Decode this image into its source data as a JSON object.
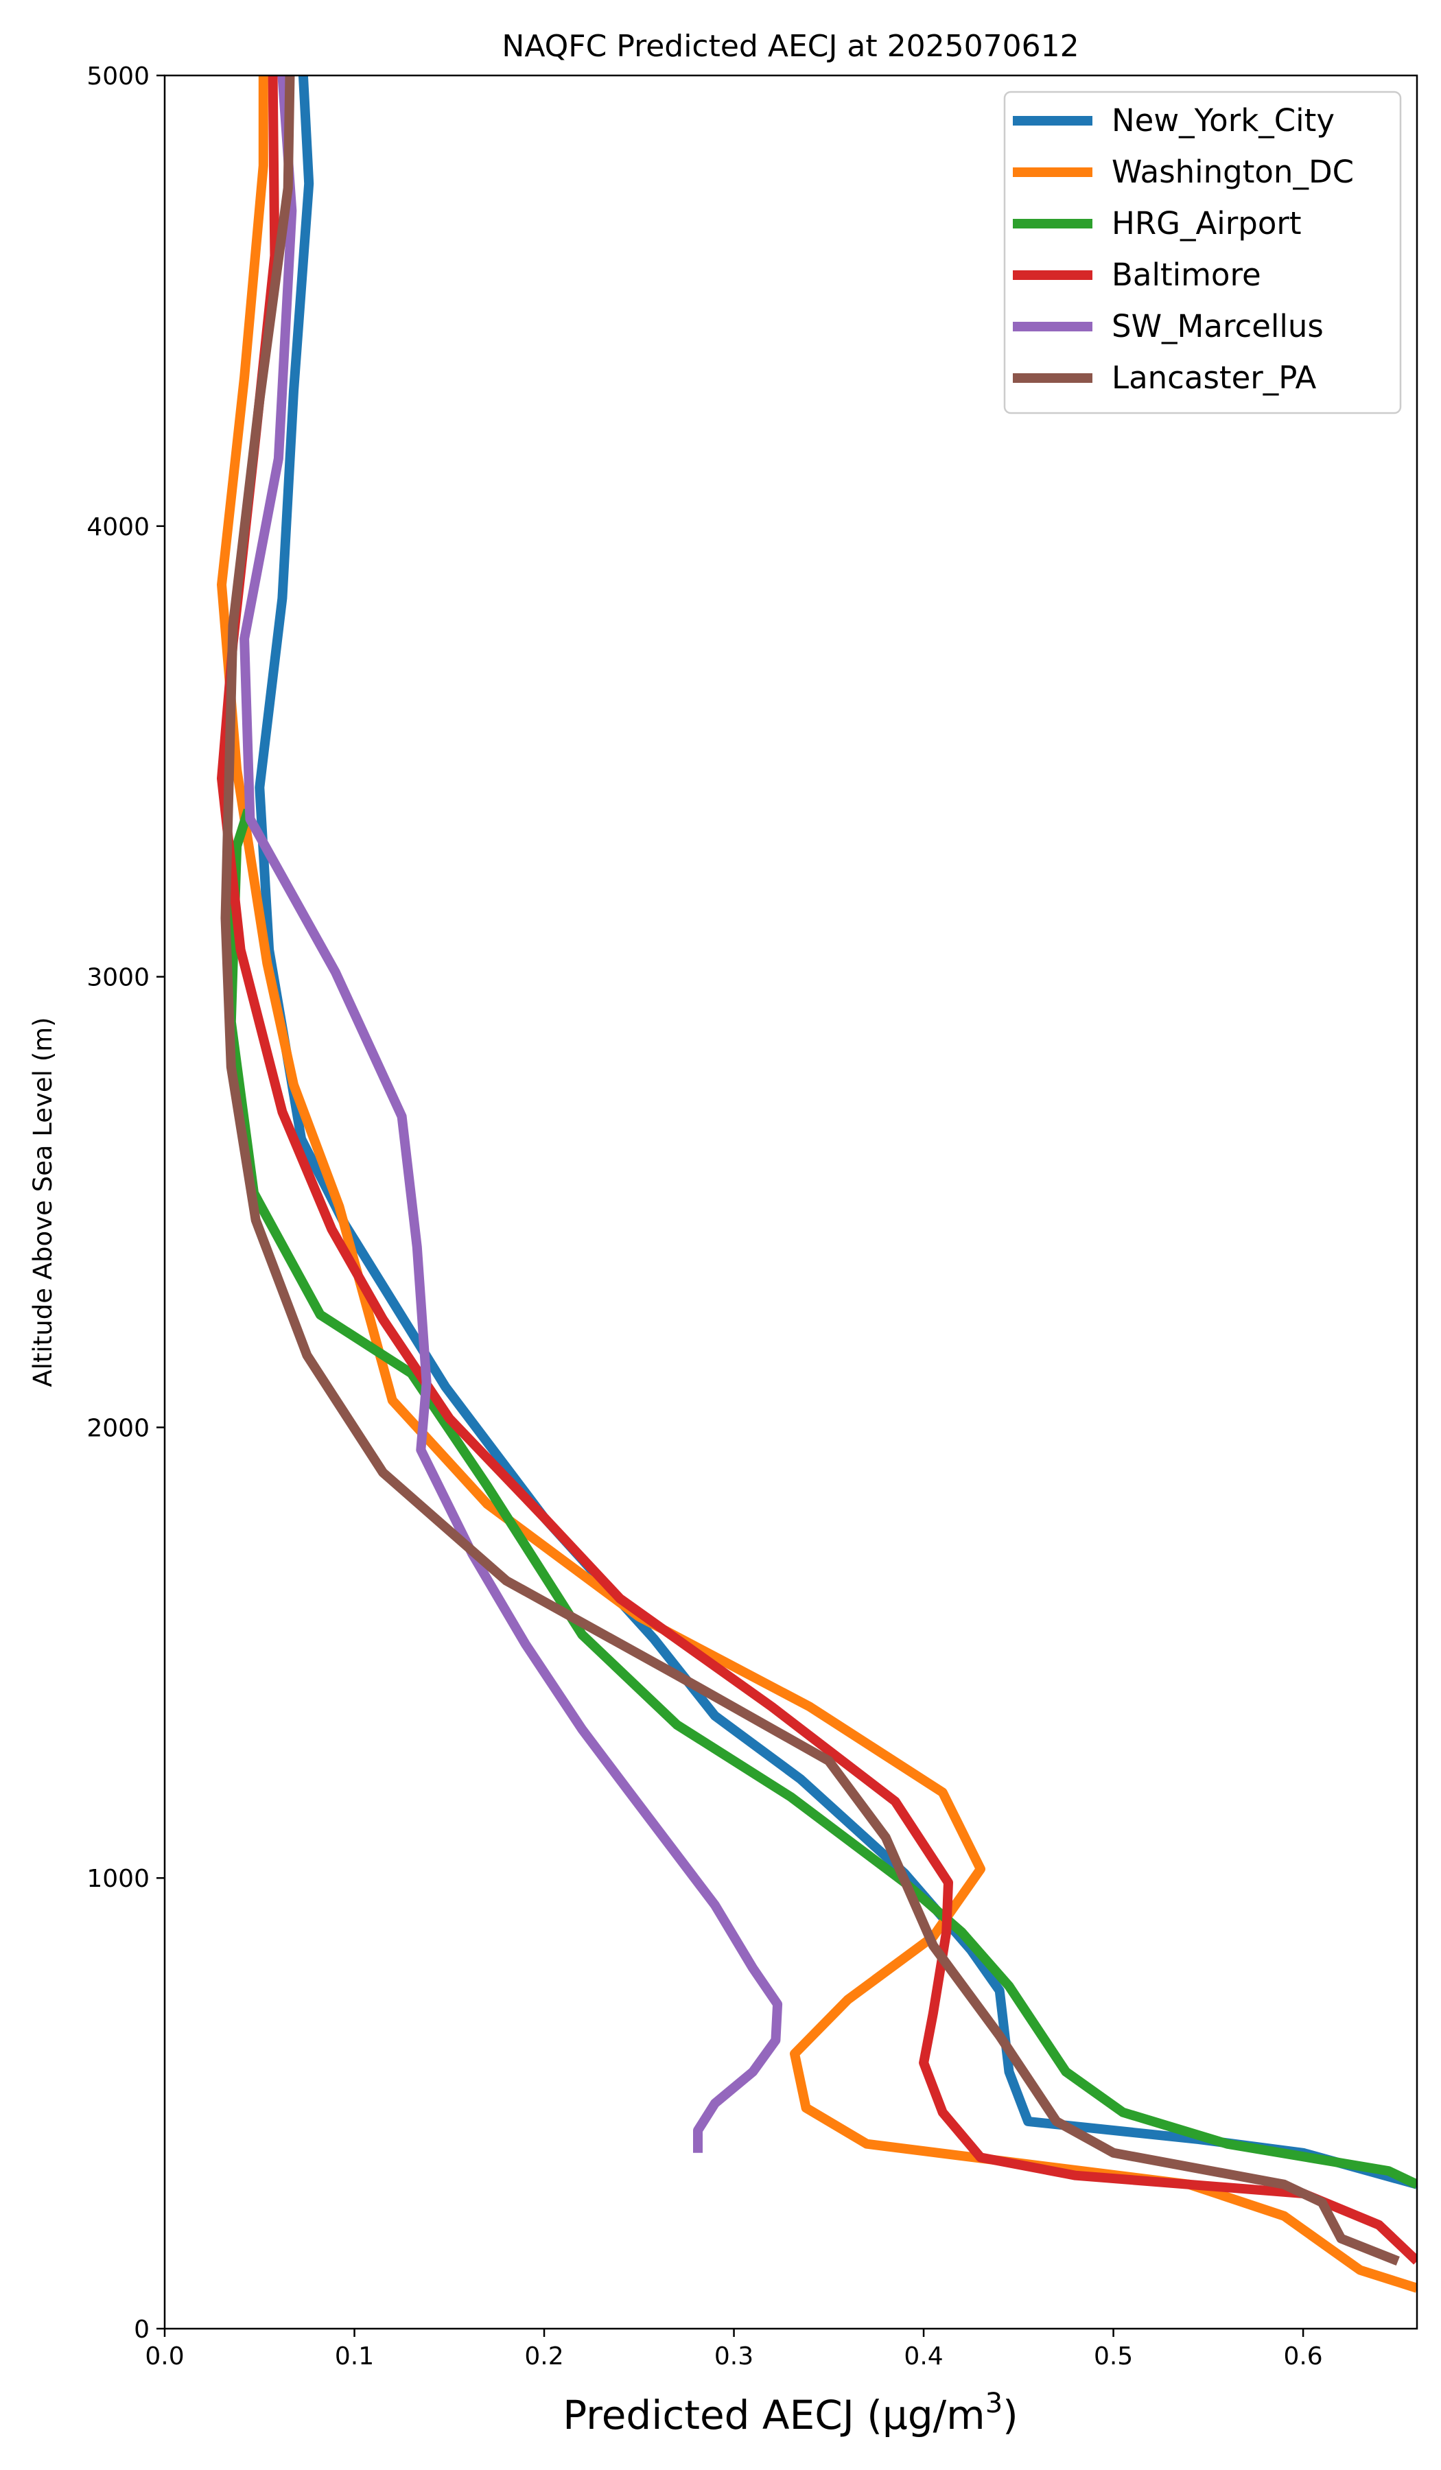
{
  "chart_data": {
    "type": "line",
    "title": "NAQFC Predicted AECJ at 2025070612",
    "xlabel": "Predicted AECJ (μg/m³)",
    "ylabel": "Altitude Above Sea Level (m)",
    "xlim": [
      0.0,
      0.66
    ],
    "ylim": [
      0,
      5000
    ],
    "xticks": [
      0.0,
      0.1,
      0.2,
      0.3,
      0.4,
      0.5,
      0.6
    ],
    "xtick_labels": [
      "0.0",
      "0.1",
      "0.2",
      "0.3",
      "0.4",
      "0.5",
      "0.6"
    ],
    "yticks": [
      0,
      1000,
      2000,
      3000,
      4000,
      5000
    ],
    "ytick_labels": [
      "0",
      "1000",
      "2000",
      "3000",
      "4000",
      "5000"
    ],
    "grid": false,
    "legend_position": "top-right",
    "series": [
      {
        "name": "New_York_City",
        "color": "#1f77b4",
        "points": [
          [
            0.66,
            320
          ],
          [
            0.6,
            390
          ],
          [
            0.545,
            420
          ],
          [
            0.455,
            460
          ],
          [
            0.445,
            570
          ],
          [
            0.44,
            750
          ],
          [
            0.425,
            840
          ],
          [
            0.39,
            1010
          ],
          [
            0.335,
            1220
          ],
          [
            0.29,
            1360
          ],
          [
            0.258,
            1530
          ],
          [
            0.2,
            1800
          ],
          [
            0.148,
            2090
          ],
          [
            0.095,
            2450
          ],
          [
            0.072,
            2640
          ],
          [
            0.055,
            3060
          ],
          [
            0.05,
            3420
          ],
          [
            0.062,
            3840
          ],
          [
            0.068,
            4300
          ],
          [
            0.076,
            4760
          ],
          [
            0.073,
            5000
          ]
        ]
      },
      {
        "name": "Washington_DC",
        "color": "#ff7f0e",
        "points": [
          [
            0.66,
            90
          ],
          [
            0.63,
            130
          ],
          [
            0.59,
            250
          ],
          [
            0.54,
            320
          ],
          [
            0.37,
            410
          ],
          [
            0.338,
            490
          ],
          [
            0.332,
            610
          ],
          [
            0.36,
            730
          ],
          [
            0.405,
            870
          ],
          [
            0.43,
            1020
          ],
          [
            0.41,
            1190
          ],
          [
            0.34,
            1380
          ],
          [
            0.25,
            1580
          ],
          [
            0.17,
            1830
          ],
          [
            0.12,
            2060
          ],
          [
            0.092,
            2490
          ],
          [
            0.068,
            2760
          ],
          [
            0.054,
            3030
          ],
          [
            0.038,
            3460
          ],
          [
            0.03,
            3870
          ],
          [
            0.042,
            4330
          ],
          [
            0.052,
            4800
          ],
          [
            0.052,
            5000
          ]
        ]
      },
      {
        "name": "HRG_Airport",
        "color": "#2ca02c",
        "points": [
          [
            0.66,
            320
          ],
          [
            0.645,
            350
          ],
          [
            0.56,
            410
          ],
          [
            0.505,
            480
          ],
          [
            0.475,
            570
          ],
          [
            0.445,
            760
          ],
          [
            0.42,
            880
          ],
          [
            0.39,
            990
          ],
          [
            0.33,
            1180
          ],
          [
            0.27,
            1340
          ],
          [
            0.22,
            1540
          ],
          [
            0.17,
            1870
          ],
          [
            0.13,
            2120
          ],
          [
            0.082,
            2250
          ],
          [
            0.047,
            2520
          ],
          [
            0.035,
            2900
          ],
          [
            0.038,
            3290
          ],
          [
            0.044,
            3370
          ]
        ]
      },
      {
        "name": "Baltimore",
        "color": "#d62728",
        "points": [
          [
            0.66,
            150
          ],
          [
            0.64,
            230
          ],
          [
            0.6,
            300
          ],
          [
            0.48,
            340
          ],
          [
            0.43,
            380
          ],
          [
            0.41,
            480
          ],
          [
            0.4,
            590
          ],
          [
            0.405,
            700
          ],
          [
            0.412,
            880
          ],
          [
            0.413,
            990
          ],
          [
            0.385,
            1170
          ],
          [
            0.32,
            1380
          ],
          [
            0.24,
            1620
          ],
          [
            0.2,
            1800
          ],
          [
            0.15,
            2020
          ],
          [
            0.115,
            2240
          ],
          [
            0.088,
            2440
          ],
          [
            0.062,
            2700
          ],
          [
            0.04,
            3060
          ],
          [
            0.03,
            3440
          ],
          [
            0.036,
            3740
          ],
          [
            0.048,
            4200
          ],
          [
            0.058,
            4600
          ],
          [
            0.057,
            5000
          ]
        ]
      },
      {
        "name": "SW_Marcellus",
        "color": "#9467bd",
        "points": [
          [
            0.281,
            390
          ],
          [
            0.281,
            440
          ],
          [
            0.29,
            500
          ],
          [
            0.31,
            570
          ],
          [
            0.322,
            640
          ],
          [
            0.323,
            720
          ],
          [
            0.31,
            800
          ],
          [
            0.29,
            940
          ],
          [
            0.245,
            1190
          ],
          [
            0.22,
            1330
          ],
          [
            0.19,
            1520
          ],
          [
            0.162,
            1720
          ],
          [
            0.135,
            1950
          ],
          [
            0.138,
            2100
          ],
          [
            0.133,
            2400
          ],
          [
            0.125,
            2690
          ],
          [
            0.09,
            3010
          ],
          [
            0.045,
            3350
          ],
          [
            0.042,
            3750
          ],
          [
            0.06,
            4150
          ],
          [
            0.067,
            4700
          ],
          [
            0.062,
            5000
          ]
        ]
      },
      {
        "name": "Lancaster_PA",
        "color": "#8c564b",
        "points": [
          [
            0.65,
            150
          ],
          [
            0.62,
            200
          ],
          [
            0.61,
            280
          ],
          [
            0.59,
            320
          ],
          [
            0.5,
            390
          ],
          [
            0.47,
            460
          ],
          [
            0.44,
            650
          ],
          [
            0.405,
            850
          ],
          [
            0.38,
            1090
          ],
          [
            0.35,
            1260
          ],
          [
            0.27,
            1450
          ],
          [
            0.18,
            1660
          ],
          [
            0.115,
            1900
          ],
          [
            0.075,
            2160
          ],
          [
            0.048,
            2460
          ],
          [
            0.035,
            2800
          ],
          [
            0.032,
            3130
          ],
          [
            0.036,
            3780
          ],
          [
            0.05,
            4280
          ],
          [
            0.065,
            4750
          ],
          [
            0.066,
            5000
          ]
        ]
      }
    ]
  }
}
